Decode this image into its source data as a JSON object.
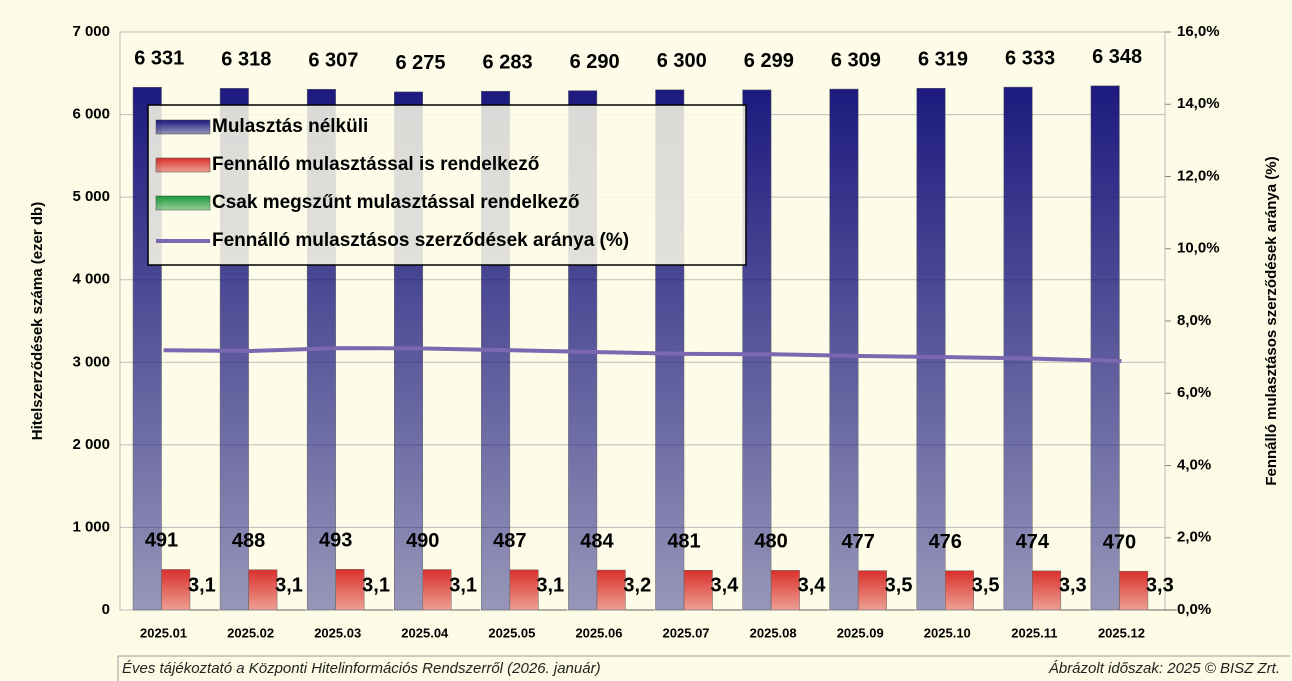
{
  "chart_data": {
    "type": "bar",
    "y_axis_label": "Hitelszerződések száma (ezer db)",
    "y2_axis_label": "Fennálló mulasztásos szerződések aránya (%)",
    "categories": [
      "2025.01",
      "2025.02",
      "2025.03",
      "2025.04",
      "2025.05",
      "2025.06",
      "2025.07",
      "2025.08",
      "2025.09",
      "2025.10",
      "2025.11",
      "2025.12"
    ],
    "series": [
      {
        "name": "Mulasztás nélküli",
        "color": "#1c1a7e",
        "values": [
          6331,
          6318,
          6307,
          6275,
          6283,
          6290,
          6300,
          6299,
          6309,
          6319,
          6333,
          6348
        ],
        "value_labels": [
          "6 331",
          "6 318",
          "6 307",
          "6 275",
          "6 283",
          "6 290",
          "6 300",
          "6 299",
          "6 309",
          "6 319",
          "6 333",
          "6 348"
        ]
      },
      {
        "name": "Fennálló mulasztással is rendelkező",
        "color": "#d9302c",
        "values": [
          491,
          488,
          493,
          490,
          487,
          484,
          481,
          480,
          477,
          476,
          474,
          470
        ]
      },
      {
        "name": "Csak megszűnt mulasztással rendelkező",
        "color": "#1a9a3a",
        "values": [
          3.1,
          3.1,
          3.1,
          3.1,
          3.1,
          3.2,
          3.4,
          3.4,
          3.5,
          3.5,
          3.3,
          3.3
        ],
        "value_labels": [
          "3,1",
          "3,1",
          "3,1",
          "3,1",
          "3,1",
          "3,2",
          "3,4",
          "3,4",
          "3,5",
          "3,5",
          "3,3",
          "3,3"
        ]
      },
      {
        "name": "Fennálló mulasztásos szerződések aránya (%)",
        "color": "#7b68b0",
        "type": "line",
        "axis": "y2",
        "values": [
          7.19,
          7.17,
          7.25,
          7.24,
          7.19,
          7.14,
          7.09,
          7.08,
          7.03,
          7.0,
          6.96,
          6.89
        ]
      }
    ],
    "ylim": [
      0,
      7000
    ],
    "yticks": [
      0,
      {
        "value": 1000,
        "label": "1 000"
      },
      {
        "value": 2000,
        "label": "2 000"
      },
      {
        "value": 3000,
        "label": "3 000"
      },
      {
        "value": 4000,
        "label": "4 000"
      },
      {
        "value": 5000,
        "label": "5 000"
      },
      {
        "value": 6000,
        "label": "6 000"
      },
      {
        "value": 7000,
        "label": "7 000"
      }
    ],
    "y2lim": [
      0,
      16
    ],
    "y2ticks": [
      {
        "value": 0,
        "label": "0,0%"
      },
      {
        "value": 2,
        "label": "2,0%"
      },
      {
        "value": 4,
        "label": "4,0%"
      },
      {
        "value": 6,
        "label": "6,0%"
      },
      {
        "value": 8,
        "label": "8,0%"
      },
      {
        "value": 10,
        "label": "10,0%"
      },
      {
        "value": 12,
        "label": "12,0%"
      },
      {
        "value": 14,
        "label": "14,0%"
      },
      {
        "value": 16,
        "label": "16,0%"
      }
    ],
    "grid": true,
    "legend": "top-left",
    "footer_left": "Éves tájékoztató a Központi Hitelinformációs Rendszerről (2026. január)",
    "footer_right": "Ábrázolt időszak: 2025 © BISZ Zrt."
  }
}
